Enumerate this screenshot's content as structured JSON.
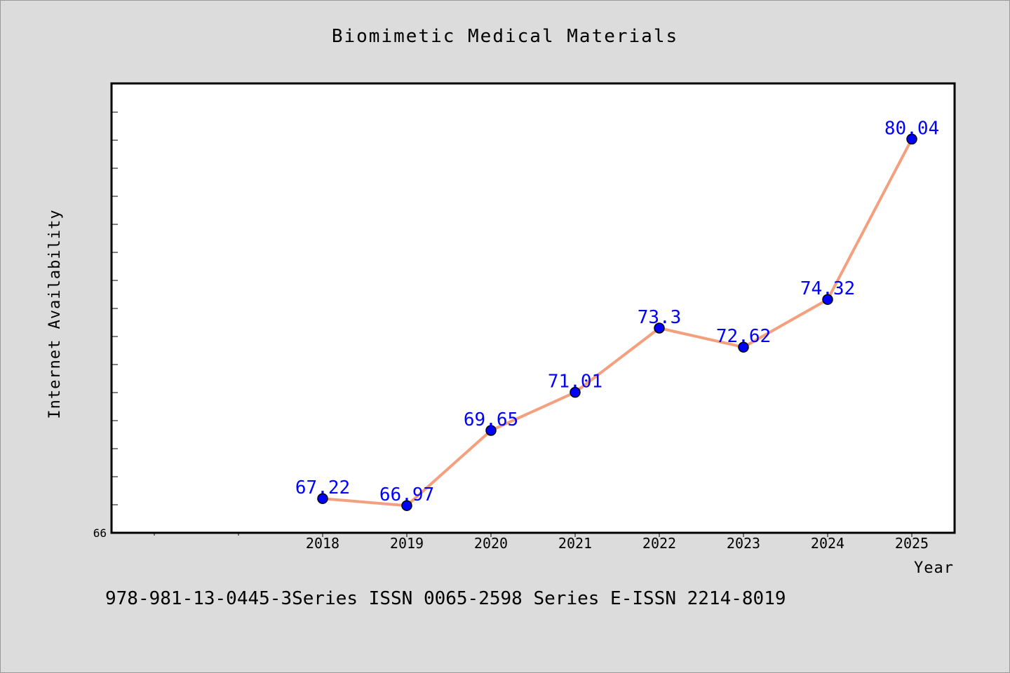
{
  "chart_data": {
    "type": "line",
    "title": "Biomimetic Medical Materials",
    "xlabel": "Year",
    "ylabel": "Internet Availability",
    "x": [
      "2018",
      "2019",
      "2020",
      "2021",
      "2022",
      "2023",
      "2024",
      "2025"
    ],
    "series": [
      {
        "values": [
          67.22,
          66.97,
          69.65,
          71.01,
          73.3,
          72.62,
          74.32,
          80.04
        ]
      }
    ],
    "data_labels": [
      "67.22",
      "66.97",
      "69.65",
      "71.01",
      "73.3",
      "72.62",
      "74.32",
      "80.04"
    ],
    "ylim": [
      66,
      82
    ],
    "y_tick_labels": [
      "66"
    ],
    "grid": false,
    "legend": "none",
    "colors": {
      "line": "#f4a07e",
      "marker": "#0000ff",
      "marker_edge": "#000000",
      "data_label": "#0000ff",
      "plot_background": "#ffffff",
      "figure_background": "#dcdcdc"
    }
  },
  "footer": "978-981-13-0445-3Series ISSN 0065-2598 Series E-ISSN 2214-8019"
}
